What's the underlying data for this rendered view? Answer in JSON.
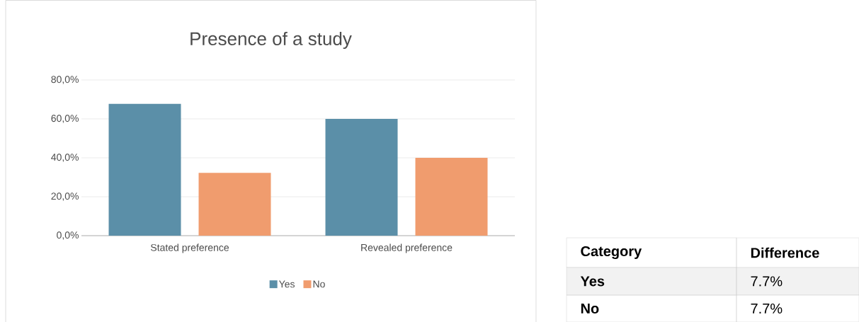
{
  "chart_data": [
    {
      "type": "bar",
      "title": "Presence of a study",
      "categories": [
        "Stated preference",
        "Revealed preference"
      ],
      "series": [
        {
          "name": "Yes",
          "color": "#5b8fa8",
          "values": [
            67.7,
            60.0
          ]
        },
        {
          "name": "No",
          "color": "#f09c6e",
          "values": [
            32.3,
            40.0
          ]
        }
      ],
      "ylim": [
        0,
        80
      ],
      "yticks": [
        {
          "value": 0,
          "label": "0,0%"
        },
        {
          "value": 20,
          "label": "20,0%"
        },
        {
          "value": 40,
          "label": "40,0%"
        },
        {
          "value": 60,
          "label": "60,0%"
        },
        {
          "value": 80,
          "label": "80,0%"
        }
      ],
      "grid": "y",
      "legend": "bottom"
    },
    {
      "type": "other",
      "annotations": [
        "Category",
        "Difference",
        "Yes",
        "7.7%",
        "No",
        "7.7%"
      ]
    }
  ]
}
